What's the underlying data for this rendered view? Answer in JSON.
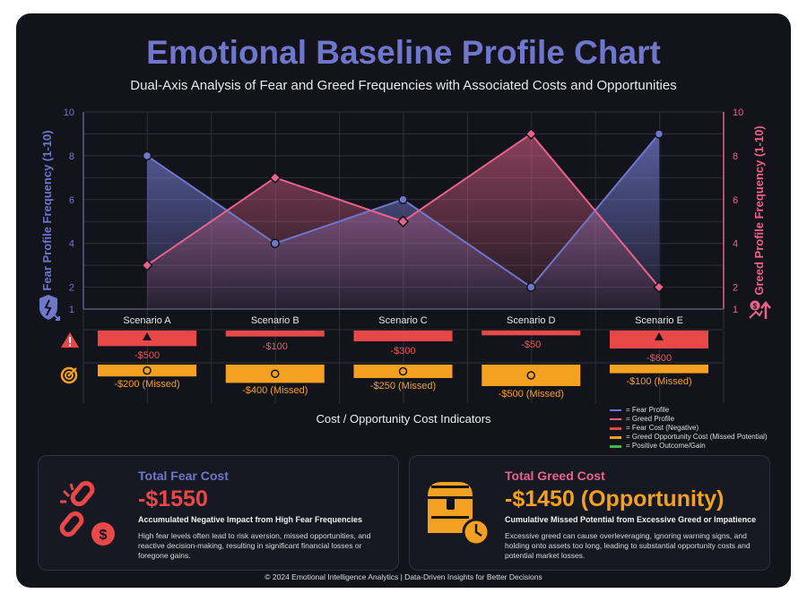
{
  "title": "Emotional Baseline Profile Chart",
  "subtitle": "Dual-Axis Analysis of Fear and Greed Frequencies with Associated Costs and Opportunities",
  "colors": {
    "fear": "#7076c9",
    "greed": "#e8638c",
    "fear_cost": "#e84848",
    "greed_cost": "#f4a020",
    "gain": "#3cba54",
    "background": "#13141b"
  },
  "chart_data": {
    "type": "line",
    "categories": [
      "Scenario A",
      "Scenario B",
      "Scenario C",
      "Scenario D",
      "Scenario E"
    ],
    "series": [
      {
        "name": "Fear Profile",
        "axis": "left",
        "values": [
          8,
          4,
          6,
          2,
          9
        ]
      },
      {
        "name": "Greed Profile",
        "axis": "right",
        "values": [
          3,
          7,
          5,
          9,
          2
        ]
      }
    ],
    "ylabel_left": "Fear Profile Frequency (1-10)",
    "ylabel_right": "Greed Profile Frequency (1-10)",
    "ylim": [
      1,
      10
    ],
    "yticks": [
      "10",
      "8",
      "6",
      "4",
      "2",
      "1"
    ],
    "grid": true,
    "fear_costs": {
      "values": [
        -500,
        -100,
        -300,
        -50,
        -600
      ],
      "labels": [
        "-$500",
        "-$100",
        "-$300",
        "-$50",
        "-$600"
      ]
    },
    "greed_costs": {
      "values": [
        -200,
        -400,
        -250,
        -500,
        -100
      ],
      "labels": [
        "-$200 (Missed)",
        "-$400 (Missed)",
        "-$250 (Missed)",
        "-$500 (Missed)",
        "-$100 (Missed)"
      ]
    },
    "indicator_title": "Cost / Opportunity Cost Indicators",
    "legend": [
      "= Fear Profile",
      "= Greed Profile",
      "= Fear Cost (Negative)",
      "= Greed Opportunity Cost (Missed Potential)",
      "= Positive Outcome/Gain"
    ],
    "legend_position": "bottom-right"
  },
  "fear_box": {
    "title": "Total Fear Cost",
    "value": "-$1550",
    "subtitle": "Accumulated Negative Impact from High Fear Frequencies",
    "description": "High fear levels often lead to risk aversion, missed opportunities, and reactive decision-making, resulting in significant financial losses or foregone gains.",
    "icon": "broken-chain-dollar-icon"
  },
  "greed_box": {
    "title": "Total Greed Cost",
    "value": "-$1450 (Opportunity)",
    "subtitle": "Cumulative Missed Potential from Excessive Greed or Impatience",
    "description": "Excessive greed can cause overleveraging, ignoring warning signs, and holding onto assets too long, leading to substantial opportunity costs and potential market losses.",
    "icon": "treasure-chest-clock-icon"
  },
  "footer": "© 2024 Emotional Intelligence Analytics | Data-Driven Insights for Better Decisions"
}
